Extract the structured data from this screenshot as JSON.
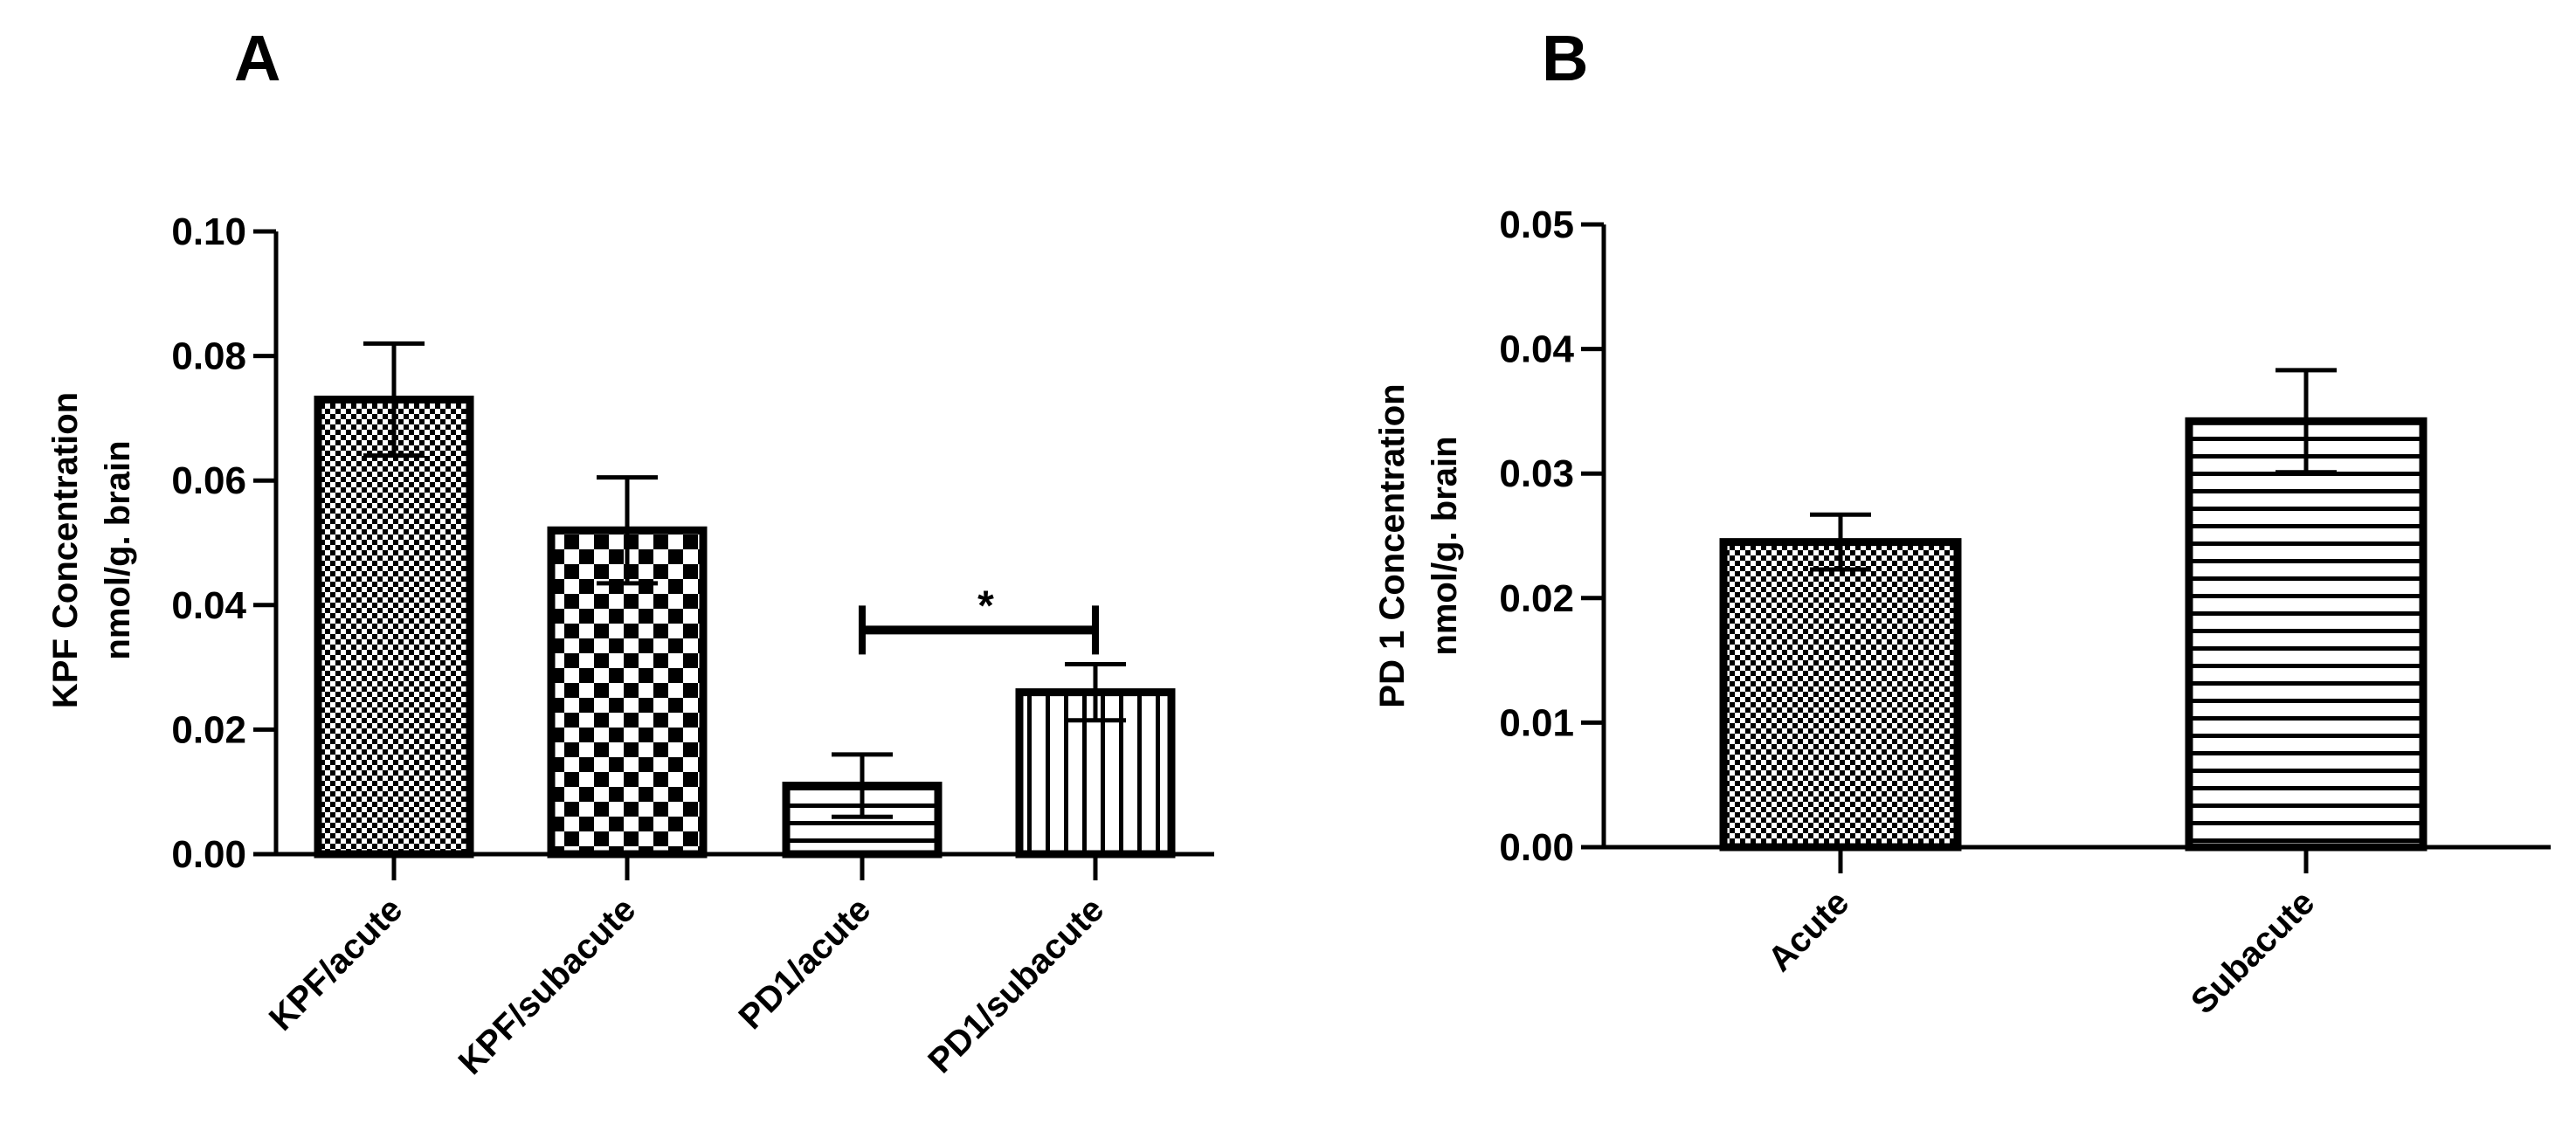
{
  "chart_data": [
    {
      "panel": "A",
      "type": "bar",
      "ylabel": [
        "KPF Concentration",
        "nmol/g. brain"
      ],
      "ylim": [
        0,
        0.1
      ],
      "yticks": [
        "0.00",
        "0.02",
        "0.04",
        "0.06",
        "0.08",
        "0.10"
      ],
      "categories": [
        "KPF/acute",
        "KPF/subacute",
        "PD1/acute",
        "PD1/subacute"
      ],
      "values": [
        0.073,
        0.052,
        0.011,
        0.026
      ],
      "errors": [
        0.009,
        0.0085,
        0.005,
        0.0045
      ],
      "patterns": [
        "fine-check",
        "coarse-check",
        "horizontal-lines",
        "vertical-lines"
      ],
      "significance": {
        "from": 2,
        "to": 3,
        "y": 0.036,
        "label": "*"
      }
    },
    {
      "panel": "B",
      "type": "bar",
      "ylabel": [
        "PD 1 Concentration",
        "nmol/g. brain"
      ],
      "ylim": [
        0,
        0.05
      ],
      "yticks": [
        "0.00",
        "0.01",
        "0.02",
        "0.03",
        "0.04",
        "0.05"
      ],
      "categories": [
        "Acute",
        "Subacute"
      ],
      "values": [
        0.0245,
        0.0342
      ],
      "errors": [
        0.0022,
        0.0041
      ],
      "patterns": [
        "fine-check",
        "horizontal-lines"
      ]
    }
  ]
}
